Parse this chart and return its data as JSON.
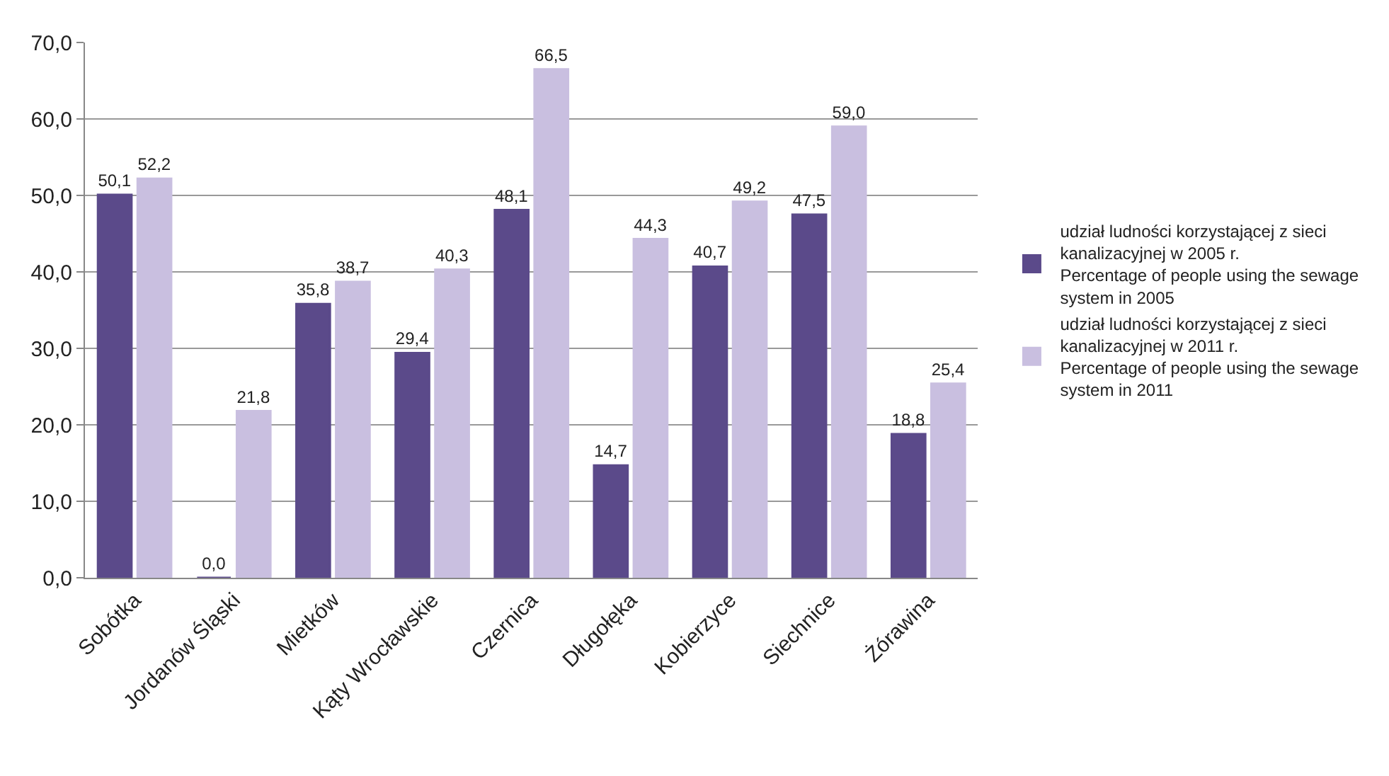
{
  "chart_data": {
    "type": "bar",
    "categories": [
      "Sobótka",
      "Jordanów Śląski",
      "Mietków",
      "Kąty Wrocławskie",
      "Czernica",
      "Długołęka",
      "Kobierzyce",
      "Siechnice",
      "Żórawina"
    ],
    "series": [
      {
        "name": "udział ludności korzystającej z sieci\nkanalizacyjnej w 2005 r.\nPercentage of people using the sewage\nsystem in 2005",
        "color": "#5b4a8a",
        "values": [
          50.1,
          0.0,
          35.8,
          29.4,
          48.1,
          14.7,
          40.7,
          47.5,
          18.8
        ],
        "value_labels": [
          "50,1",
          "0,0",
          "35,8",
          "29,4",
          "48,1",
          "14,7",
          "40,7",
          "47,5",
          "18,8"
        ]
      },
      {
        "name": "udział ludności korzystającej z sieci\nkanalizacyjnej w 2011 r.\nPercentage of people using the sewage\nsystem in 2011",
        "color": "#c9bfe0",
        "values": [
          52.2,
          21.8,
          38.7,
          40.3,
          66.5,
          44.3,
          49.2,
          59.0,
          25.4
        ],
        "value_labels": [
          "52,2",
          "21,8",
          "38,7",
          "40,3",
          "66,5",
          "44,3",
          "49,2",
          "59,0",
          "25,4"
        ]
      }
    ],
    "ylim": [
      0,
      70
    ],
    "yticks": [
      {
        "value": 0,
        "label": "0,0"
      },
      {
        "value": 10,
        "label": "10,0"
      },
      {
        "value": 20,
        "label": "20,0"
      },
      {
        "value": 30,
        "label": "30,0"
      },
      {
        "value": 40,
        "label": "40,0"
      },
      {
        "value": 50,
        "label": "50,0"
      },
      {
        "value": 60,
        "label": "60,0"
      },
      {
        "value": 70,
        "label": "70,0"
      }
    ],
    "grid": "y",
    "legend": "right"
  }
}
